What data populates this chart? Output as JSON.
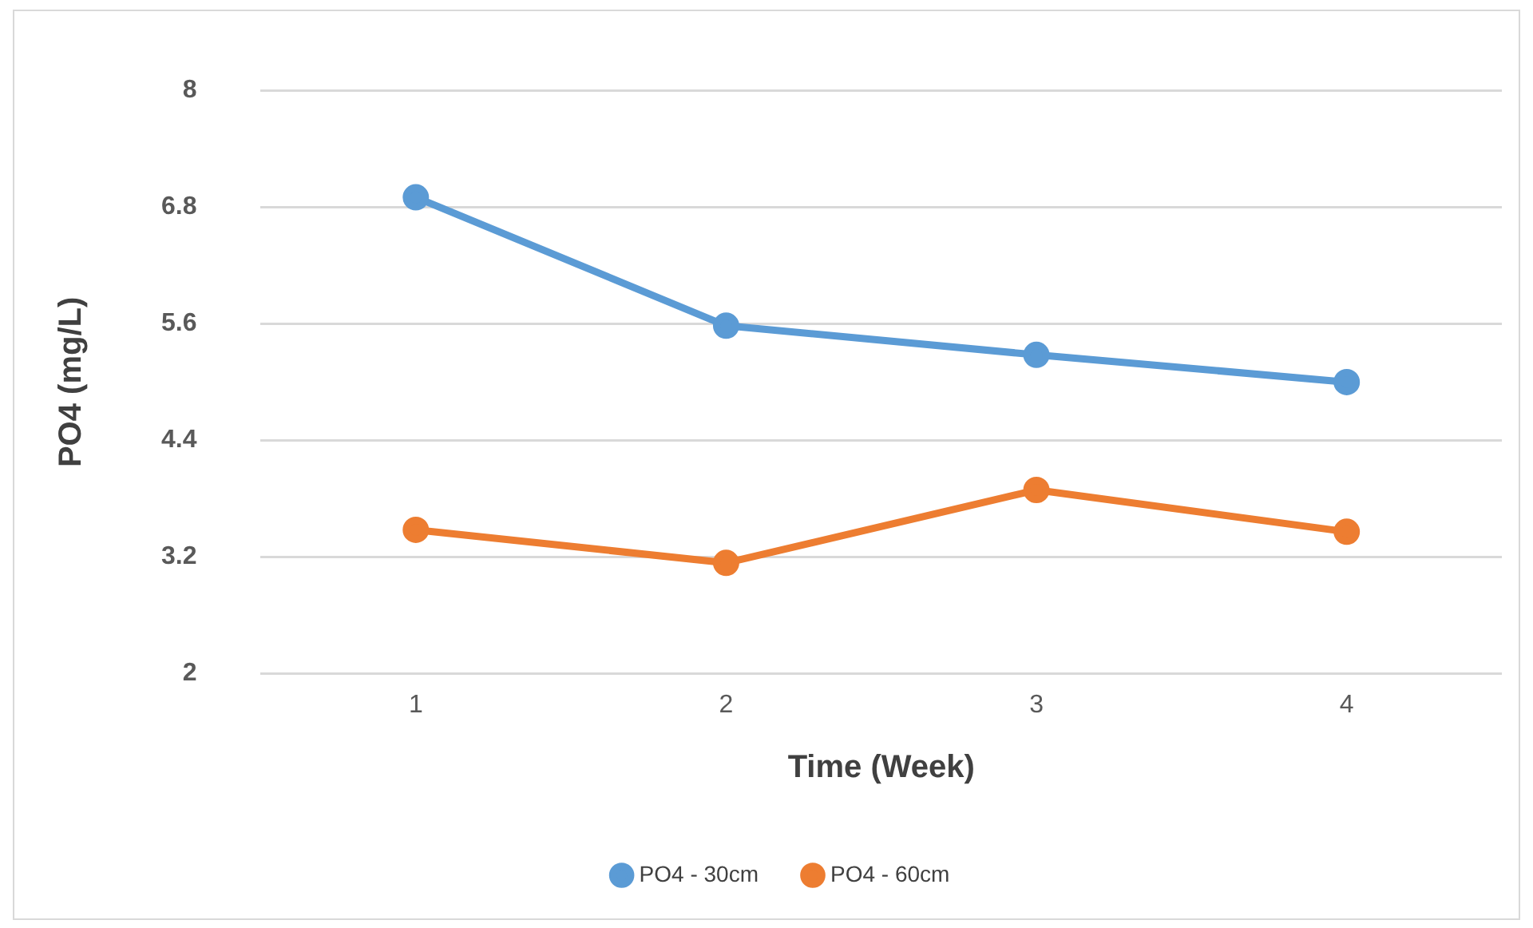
{
  "chart_data": {
    "type": "line",
    "xlabel": "Time (Week)",
    "ylabel": "PO4 (mg/L)",
    "categories": [
      "1",
      "2",
      "3",
      "4"
    ],
    "series": [
      {
        "name": "PO4 - 30cm",
        "color": "#5b9bd5",
        "values": [
          6.9,
          5.58,
          5.28,
          5.0
        ]
      },
      {
        "name": "PO4 - 60cm",
        "color": "#ed7d31",
        "values": [
          3.48,
          3.14,
          3.89,
          3.46
        ]
      }
    ],
    "ylim": [
      2,
      8
    ],
    "yticks": [
      2,
      3.2,
      4.4,
      5.6,
      6.8,
      8
    ],
    "grid": "y",
    "legend": "bottom",
    "marker": "circle",
    "line_style": "solid"
  }
}
